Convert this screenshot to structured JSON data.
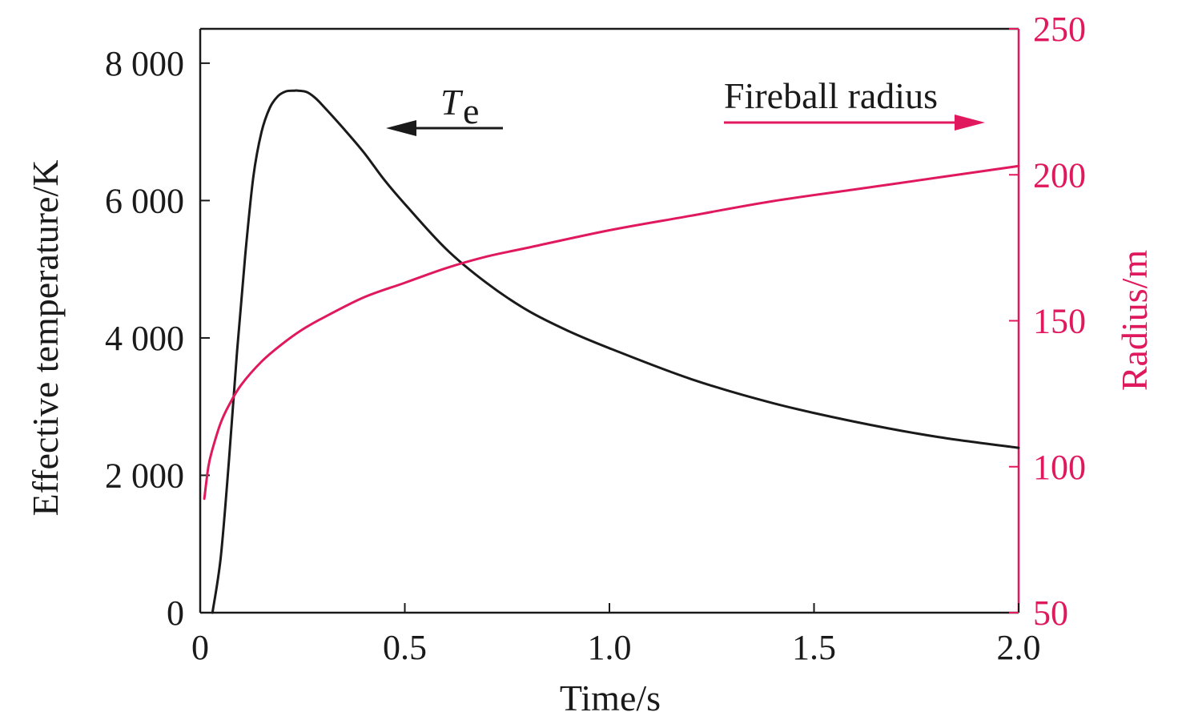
{
  "chart_data": {
    "type": "line",
    "title": "",
    "xlabel": "Time/s",
    "ylabel_left": "Effective temperature/K",
    "ylabel_right": "Radius/m",
    "xlim": [
      0,
      2.0
    ],
    "ylim_left": [
      0,
      8500
    ],
    "ylim_right": [
      50,
      250
    ],
    "x_ticks": [
      "0",
      "0.5",
      "1.0",
      "1.5",
      "2.0"
    ],
    "y_left_ticks": [
      "0",
      "2 000",
      "4 000",
      "6 000",
      "8 000"
    ],
    "y_right_ticks": [
      "50",
      "100",
      "150",
      "200",
      "250"
    ],
    "grid": false,
    "colors": {
      "temperature": "#1a1a1a",
      "radius": "#e0195f",
      "radius_arrow": "#e0195f"
    },
    "series": [
      {
        "axis": "left",
        "x": [
          0.03,
          0.05,
          0.07,
          0.09,
          0.11,
          0.13,
          0.15,
          0.17,
          0.19,
          0.21,
          0.23,
          0.24,
          0.26,
          0.28,
          0.3,
          0.35,
          0.4,
          0.45,
          0.5,
          0.6,
          0.7,
          0.8,
          0.9,
          1.0,
          1.2,
          1.4,
          1.6,
          1.8,
          2.0
        ],
        "values": [
          0,
          800,
          2200,
          3800,
          5200,
          6350,
          7000,
          7350,
          7520,
          7590,
          7600,
          7600,
          7580,
          7500,
          7380,
          7050,
          6700,
          6300,
          5950,
          5300,
          4800,
          4400,
          4100,
          3850,
          3400,
          3050,
          2780,
          2560,
          2400
        ]
      },
      {
        "axis": "right",
        "x": [
          0.01,
          0.02,
          0.03,
          0.05,
          0.07,
          0.1,
          0.15,
          0.2,
          0.25,
          0.3,
          0.4,
          0.5,
          0.6,
          0.7,
          0.8,
          1.0,
          1.2,
          1.4,
          1.6,
          1.8,
          2.0
        ],
        "values": [
          89,
          100,
          106,
          115,
          121,
          128,
          136,
          142,
          147,
          151,
          158,
          163,
          168,
          172,
          175,
          181,
          186,
          191,
          195,
          199,
          203
        ]
      }
    ],
    "annotations": {
      "te_main": "T",
      "te_sub": "e",
      "fireball": "Fireball radius"
    }
  }
}
